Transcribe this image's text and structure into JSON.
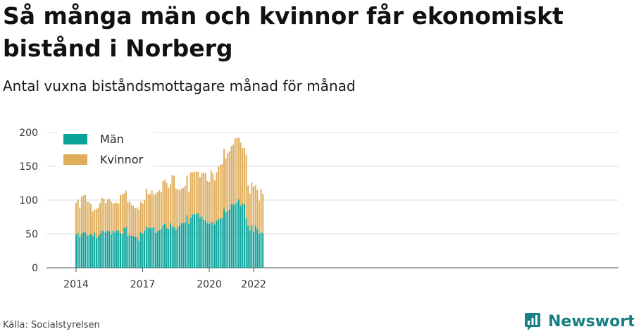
{
  "title": "Så många män och kvinnor får ekonomiskt bistånd i Norberg",
  "subtitle": "Antal vuxna biståndsmottagare månad för månad",
  "source": "Källa: Socialstyrelsen",
  "brand": "Newsworthy",
  "colors": {
    "men": "#0aa39a",
    "women": "#e0ad5a",
    "grid": "#dcdcdc",
    "brand": "#1a7f84"
  },
  "chart_data": {
    "type": "bar",
    "stacked": true,
    "x_start": "2014-01",
    "x_end": "2022-05",
    "xticks": [
      {
        "label": "2014",
        "month": "2014-01"
      },
      {
        "label": "2017",
        "month": "2017-01"
      },
      {
        "label": "2020",
        "month": "2020-01"
      },
      {
        "label": "2022",
        "month": "2022-01"
      }
    ],
    "ylim": [
      0,
      200
    ],
    "yticks": [
      0,
      50,
      100,
      150,
      200
    ],
    "grid": true,
    "legend_position": "top-left",
    "series": [
      {
        "name": "Män",
        "color": "#0aa39a",
        "values": [
          49,
          51,
          46,
          50,
          53,
          52,
          48,
          48,
          50,
          47,
          52,
          44,
          47,
          50,
          55,
          54,
          52,
          55,
          54,
          49,
          55,
          52,
          55,
          55,
          51,
          50,
          59,
          60,
          47,
          49,
          47,
          47,
          46,
          46,
          40,
          53,
          50,
          55,
          61,
          59,
          59,
          59,
          60,
          51,
          54,
          56,
          57,
          63,
          65,
          59,
          57,
          66,
          61,
          60,
          56,
          61,
          62,
          66,
          66,
          67,
          78,
          65,
          74,
          79,
          79,
          80,
          81,
          74,
          76,
          71,
          70,
          66,
          65,
          68,
          67,
          64,
          70,
          72,
          73,
          74,
          87,
          82,
          84,
          86,
          94,
          94,
          94,
          97,
          101,
          92,
          95,
          94,
          73,
          62,
          55,
          63,
          53,
          62,
          57,
          50,
          53,
          51
        ]
      },
      {
        "name": "Kvinnor",
        "color": "#e0ad5a",
        "values": [
          47,
          50,
          43,
          55,
          54,
          56,
          50,
          49,
          44,
          36,
          34,
          43,
          42,
          46,
          48,
          48,
          44,
          46,
          48,
          49,
          40,
          44,
          41,
          40,
          57,
          58,
          51,
          54,
          50,
          49,
          46,
          44,
          42,
          43,
          46,
          45,
          45,
          45,
          56,
          50,
          50,
          55,
          49,
          58,
          58,
          59,
          55,
          65,
          65,
          66,
          61,
          57,
          76,
          76,
          61,
          55,
          53,
          51,
          52,
          54,
          58,
          47,
          67,
          62,
          63,
          62,
          61,
          60,
          64,
          69,
          70,
          62,
          62,
          76,
          72,
          65,
          71,
          78,
          79,
          79,
          89,
          80,
          86,
          86,
          86,
          88,
          97,
          95,
          91,
          93,
          82,
          83,
          94,
          60,
          55,
          63,
          67,
          60,
          58,
          49,
          63,
          58
        ]
      }
    ]
  }
}
